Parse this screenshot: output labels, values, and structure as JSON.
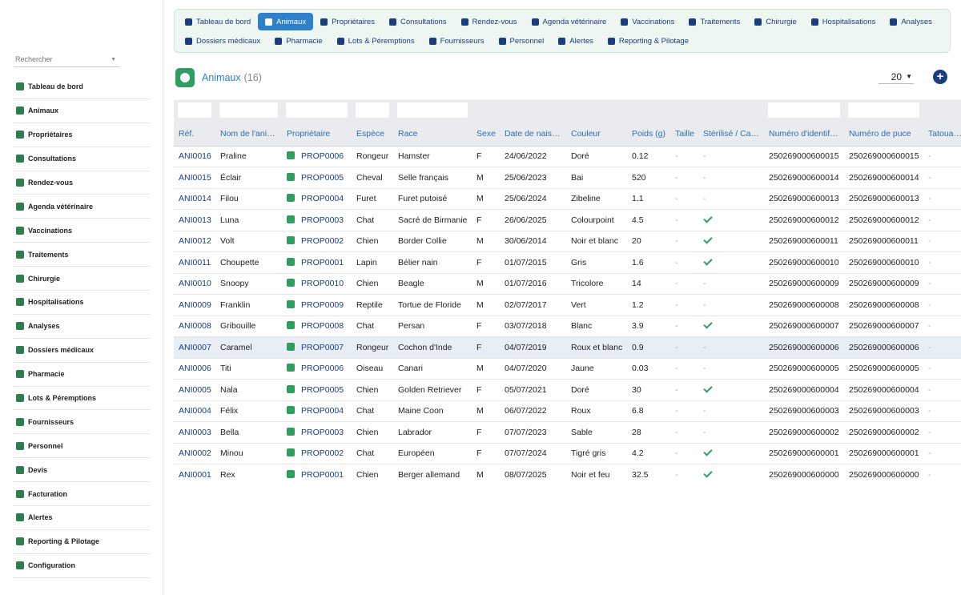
{
  "search": {
    "placeholder": "Rechercher"
  },
  "sidebar": {
    "items": [
      {
        "label": "Tableau de bord",
        "icon": "dashboard-icon"
      },
      {
        "label": "Animaux",
        "icon": "paw-icon"
      },
      {
        "label": "Propriétaires",
        "icon": "user-icon"
      },
      {
        "label": "Consultations",
        "icon": "stethoscope-icon"
      },
      {
        "label": "Rendez-vous",
        "icon": "calendar-check-icon"
      },
      {
        "label": "Agenda vétérinaire",
        "icon": "calendar-icon"
      },
      {
        "label": "Vaccinations",
        "icon": "syringe-icon"
      },
      {
        "label": "Traitements",
        "icon": "pills-icon"
      },
      {
        "label": "Chirurgie",
        "icon": "surgery-icon"
      },
      {
        "label": "Hospitalisations",
        "icon": "bed-icon"
      },
      {
        "label": "Analyses",
        "icon": "pipette-icon"
      },
      {
        "label": "Dossiers médicaux",
        "icon": "folder-icon"
      },
      {
        "label": "Pharmacie",
        "icon": "pharmacy-icon"
      },
      {
        "label": "Lots & Péremptions",
        "icon": "sitemap-icon"
      },
      {
        "label": "Fournisseurs",
        "icon": "truck-icon"
      },
      {
        "label": "Personnel",
        "icon": "user-md-icon"
      },
      {
        "label": "Devis",
        "icon": "quote-icon"
      },
      {
        "label": "Facturation",
        "icon": "invoice-icon"
      },
      {
        "label": "Alertes",
        "icon": "warning-icon"
      },
      {
        "label": "Reporting & Pilotage",
        "icon": "chart-pie-icon"
      },
      {
        "label": "Configuration",
        "icon": "gear-icon"
      }
    ]
  },
  "topnav": {
    "row1": [
      {
        "label": "Tableau de bord",
        "icon": "dashboard-icon",
        "active": false
      },
      {
        "label": "Animaux",
        "icon": "paw-icon",
        "active": true
      },
      {
        "label": "Propriétaires",
        "icon": "user-icon",
        "active": false
      },
      {
        "label": "Consultations",
        "icon": "stethoscope-icon",
        "active": false
      },
      {
        "label": "Rendez-vous",
        "icon": "calendar-check-icon",
        "active": false
      },
      {
        "label": "Agenda vétérinaire",
        "icon": "calendar-icon",
        "active": false
      },
      {
        "label": "Vaccinations",
        "icon": "syringe-icon",
        "active": false
      },
      {
        "label": "Traitements",
        "icon": "pills-icon",
        "active": false
      },
      {
        "label": "Chirurgie",
        "icon": "surgery-icon",
        "active": false
      },
      {
        "label": "Hospitalisations",
        "icon": "bed-icon",
        "active": false
      },
      {
        "label": "Analyses",
        "icon": "pipette-icon",
        "active": false
      }
    ],
    "row2": [
      {
        "label": "Dossiers médicaux",
        "icon": "folder-icon",
        "active": false
      },
      {
        "label": "Pharmacie",
        "icon": "pharmacy-icon",
        "active": false
      },
      {
        "label": "Lots & Péremptions",
        "icon": "sitemap-icon",
        "active": false
      },
      {
        "label": "Fournisseurs",
        "icon": "truck-icon",
        "active": false
      },
      {
        "label": "Personnel",
        "icon": "user-md-icon",
        "active": false
      },
      {
        "label": "Alertes",
        "icon": "warning-icon",
        "active": false
      },
      {
        "label": "Reporting & Pilotage",
        "icon": "chart-pie-icon",
        "active": false
      }
    ]
  },
  "page": {
    "title": "Animaux",
    "count": "(16)",
    "page_size": "20",
    "add_label": "+"
  },
  "table": {
    "columns": [
      "Réf.",
      "Nom de l'ani…",
      "Propriétaire",
      "Espèce",
      "Race",
      "Sexe",
      "Date de nais…",
      "Couleur",
      "Poids (g)",
      "Taille",
      "Stérilisé / Ca…",
      "Numéro d'identif…",
      "Numéro de puce",
      "Tatoua…"
    ],
    "highlighted_row": 9,
    "rows": [
      {
        "ref": "ANI0016",
        "name": "Praline",
        "owner": "PROP0006",
        "species": "Rongeur",
        "breed": "Hamster",
        "sex": "F",
        "birth": "24/06/2022",
        "color": "Doré",
        "weight": "0.12",
        "size": "-",
        "sterilized": false,
        "ident": "250269000600015",
        "chip": "250269000600015",
        "tattoo": "-"
      },
      {
        "ref": "ANI0015",
        "name": "Éclair",
        "owner": "PROP0005",
        "species": "Cheval",
        "breed": "Selle français",
        "sex": "M",
        "birth": "25/06/2023",
        "color": "Bai",
        "weight": "520",
        "size": "-",
        "sterilized": false,
        "ident": "250269000600014",
        "chip": "250269000600014",
        "tattoo": "-"
      },
      {
        "ref": "ANI0014",
        "name": "Filou",
        "owner": "PROP0004",
        "species": "Furet",
        "breed": "Furet putoisé",
        "sex": "M",
        "birth": "25/06/2024",
        "color": "Zibeline",
        "weight": "1.1",
        "size": "-",
        "sterilized": false,
        "ident": "250269000600013",
        "chip": "250269000600013",
        "tattoo": "-"
      },
      {
        "ref": "ANI0013",
        "name": "Luna",
        "owner": "PROP0003",
        "species": "Chat",
        "breed": "Sacré de Birmanie",
        "sex": "F",
        "birth": "26/06/2025",
        "color": "Colourpoint",
        "weight": "4.5",
        "size": "-",
        "sterilized": true,
        "ident": "250269000600012",
        "chip": "250269000600012",
        "tattoo": "-"
      },
      {
        "ref": "ANI0012",
        "name": "Volt",
        "owner": "PROP0002",
        "species": "Chien",
        "breed": "Border Collie",
        "sex": "M",
        "birth": "30/06/2014",
        "color": "Noir et blanc",
        "weight": "20",
        "size": "-",
        "sterilized": true,
        "ident": "250269000600011",
        "chip": "250269000600011",
        "tattoo": "-"
      },
      {
        "ref": "ANI0011",
        "name": "Choupette",
        "owner": "PROP0001",
        "species": "Lapin",
        "breed": "Bélier nain",
        "sex": "F",
        "birth": "01/07/2015",
        "color": "Gris",
        "weight": "1.6",
        "size": "-",
        "sterilized": true,
        "ident": "250269000600010",
        "chip": "250269000600010",
        "tattoo": "-"
      },
      {
        "ref": "ANI0010",
        "name": "Snoopy",
        "owner": "PROP0010",
        "species": "Chien",
        "breed": "Beagle",
        "sex": "M",
        "birth": "01/07/2016",
        "color": "Tricolore",
        "weight": "14",
        "size": "-",
        "sterilized": false,
        "ident": "250269000600009",
        "chip": "250269000600009",
        "tattoo": "-"
      },
      {
        "ref": "ANI0009",
        "name": "Franklin",
        "owner": "PROP0009",
        "species": "Reptile",
        "breed": "Tortue de Floride",
        "sex": "M",
        "birth": "02/07/2017",
        "color": "Vert",
        "weight": "1.2",
        "size": "-",
        "sterilized": false,
        "ident": "250269000600008",
        "chip": "250269000600008",
        "tattoo": "-"
      },
      {
        "ref": "ANI0008",
        "name": "Gribouille",
        "owner": "PROP0008",
        "species": "Chat",
        "breed": "Persan",
        "sex": "F",
        "birth": "03/07/2018",
        "color": "Blanc",
        "weight": "3.9",
        "size": "-",
        "sterilized": true,
        "ident": "250269000600007",
        "chip": "250269000600007",
        "tattoo": "-"
      },
      {
        "ref": "ANI0007",
        "name": "Caramel",
        "owner": "PROP0007",
        "species": "Rongeur",
        "breed": "Cochon d'Inde",
        "sex": "F",
        "birth": "04/07/2019",
        "color": "Roux et blanc",
        "weight": "0.9",
        "size": "-",
        "sterilized": false,
        "ident": "250269000600006",
        "chip": "250269000600006",
        "tattoo": "-"
      },
      {
        "ref": "ANI0006",
        "name": "Titi",
        "owner": "PROP0006",
        "species": "Oiseau",
        "breed": "Canari",
        "sex": "M",
        "birth": "04/07/2020",
        "color": "Jaune",
        "weight": "0.03",
        "size": "-",
        "sterilized": false,
        "ident": "250269000600005",
        "chip": "250269000600005",
        "tattoo": "-"
      },
      {
        "ref": "ANI0005",
        "name": "Nala",
        "owner": "PROP0005",
        "species": "Chien",
        "breed": "Golden Retriever",
        "sex": "F",
        "birth": "05/07/2021",
        "color": "Doré",
        "weight": "30",
        "size": "-",
        "sterilized": true,
        "ident": "250269000600004",
        "chip": "250269000600004",
        "tattoo": "-"
      },
      {
        "ref": "ANI0004",
        "name": "Félix",
        "owner": "PROP0004",
        "species": "Chat",
        "breed": "Maine Coon",
        "sex": "M",
        "birth": "06/07/2022",
        "color": "Roux",
        "weight": "6.8",
        "size": "-",
        "sterilized": false,
        "ident": "250269000600003",
        "chip": "250269000600003",
        "tattoo": "-"
      },
      {
        "ref": "ANI0003",
        "name": "Bella",
        "owner": "PROP0003",
        "species": "Chien",
        "breed": "Labrador",
        "sex": "F",
        "birth": "07/07/2023",
        "color": "Sable",
        "weight": "28",
        "size": "-",
        "sterilized": false,
        "ident": "250269000600002",
        "chip": "250269000600002",
        "tattoo": "-"
      },
      {
        "ref": "ANI0002",
        "name": "Minou",
        "owner": "PROP0002",
        "species": "Chat",
        "breed": "Européen",
        "sex": "F",
        "birth": "07/07/2024",
        "color": "Tigré gris",
        "weight": "4.2",
        "size": "-",
        "sterilized": true,
        "ident": "250269000600001",
        "chip": "250269000600001",
        "tattoo": "-"
      },
      {
        "ref": "ANI0001",
        "name": "Rex",
        "owner": "PROP0001",
        "species": "Chien",
        "breed": "Berger allemand",
        "sex": "M",
        "birth": "08/07/2025",
        "color": "Noir et feu",
        "weight": "32.5",
        "size": "-",
        "sterilized": true,
        "ident": "250269000600000",
        "chip": "250269000600000",
        "tattoo": "-"
      }
    ],
    "dash": "-"
  },
  "colors": {
    "accent": "#2f80c8",
    "brand_green": "#2e9d5f",
    "link": "#1a3d7c",
    "nav_bg": "#eef6f2"
  }
}
